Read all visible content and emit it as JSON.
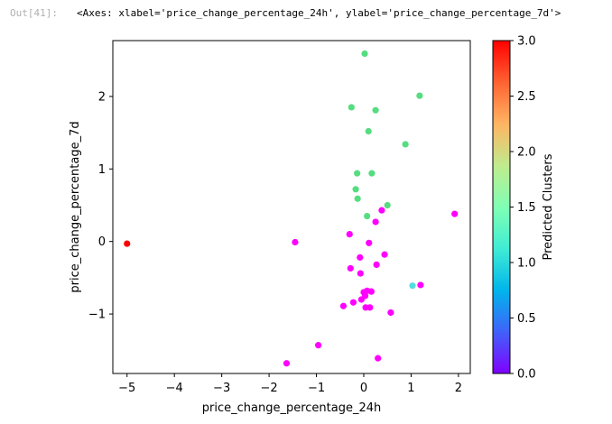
{
  "output": {
    "prompt": "Out[41]:",
    "text": "<Axes: xlabel='price_change_percentage_24h', ylabel='price_change_percentage_7d'>"
  },
  "chart_data": {
    "type": "scatter",
    "title": "",
    "xlabel": "price_change_percentage_24h",
    "ylabel": "price_change_percentage_7d",
    "xlim": [
      -5.3,
      2.25
    ],
    "ylim": [
      -1.82,
      2.77
    ],
    "xticks": [
      -5,
      -4,
      -3,
      -2,
      -1,
      0,
      1,
      2
    ],
    "xtick_labels": [
      "−5",
      "−4",
      "−3",
      "−2",
      "−1",
      "0",
      "1",
      "2"
    ],
    "yticks": [
      -1,
      0,
      1,
      2
    ],
    "ytick_labels": [
      "−1",
      "0",
      "1",
      "2"
    ],
    "grid": false,
    "colormap": "rainbow",
    "colorbar": {
      "label": "Predicted Clusters",
      "range": [
        0,
        3
      ],
      "ticks": [
        0.0,
        0.5,
        1.0,
        1.5,
        2.0,
        2.5,
        3.0
      ],
      "tick_labels": [
        "0.0",
        "0.5",
        "1.0",
        "1.5",
        "2.0",
        "2.5",
        "3.0"
      ]
    },
    "points": [
      {
        "x": -5.0,
        "y": -0.03,
        "c": 3
      },
      {
        "x": 1.03,
        "y": -0.61,
        "c": 1
      },
      {
        "x": 0.02,
        "y": 2.59,
        "c": 2
      },
      {
        "x": 1.18,
        "y": 2.01,
        "c": 2
      },
      {
        "x": -0.26,
        "y": 1.85,
        "c": 2
      },
      {
        "x": 0.25,
        "y": 1.81,
        "c": 2
      },
      {
        "x": 0.1,
        "y": 1.52,
        "c": 2
      },
      {
        "x": 0.88,
        "y": 1.34,
        "c": 2
      },
      {
        "x": -0.14,
        "y": 0.94,
        "c": 2
      },
      {
        "x": 0.17,
        "y": 0.94,
        "c": 2
      },
      {
        "x": -0.17,
        "y": 0.72,
        "c": 2
      },
      {
        "x": -0.13,
        "y": 0.59,
        "c": 2
      },
      {
        "x": 0.5,
        "y": 0.5,
        "c": 2
      },
      {
        "x": 0.07,
        "y": 0.35,
        "c": 2
      },
      {
        "x": 1.92,
        "y": 0.38,
        "c": 0
      },
      {
        "x": 0.38,
        "y": 0.43,
        "c": 0
      },
      {
        "x": 0.25,
        "y": 0.27,
        "c": 0
      },
      {
        "x": -0.3,
        "y": 0.1,
        "c": 0
      },
      {
        "x": -1.45,
        "y": -0.01,
        "c": 0
      },
      {
        "x": 0.11,
        "y": -0.02,
        "c": 0
      },
      {
        "x": 0.44,
        "y": -0.18,
        "c": 0
      },
      {
        "x": -0.08,
        "y": -0.22,
        "c": 0
      },
      {
        "x": 0.27,
        "y": -0.32,
        "c": 0
      },
      {
        "x": -0.28,
        "y": -0.37,
        "c": 0
      },
      {
        "x": -0.07,
        "y": -0.44,
        "c": 0
      },
      {
        "x": 1.2,
        "y": -0.6,
        "c": 0
      },
      {
        "x": 0.0,
        "y": -0.7,
        "c": 0
      },
      {
        "x": 0.07,
        "y": -0.68,
        "c": 0
      },
      {
        "x": 0.16,
        "y": -0.69,
        "c": 0
      },
      {
        "x": 0.03,
        "y": -0.75,
        "c": 0
      },
      {
        "x": -0.05,
        "y": -0.8,
        "c": 0
      },
      {
        "x": -0.22,
        "y": -0.84,
        "c": 0
      },
      {
        "x": -0.43,
        "y": -0.89,
        "c": 0
      },
      {
        "x": 0.04,
        "y": -0.91,
        "c": 0
      },
      {
        "x": 0.13,
        "y": -0.91,
        "c": 0
      },
      {
        "x": 0.57,
        "y": -0.98,
        "c": 0
      },
      {
        "x": -0.96,
        "y": -1.43,
        "c": 0
      },
      {
        "x": 0.3,
        "y": -1.61,
        "c": 0
      },
      {
        "x": -1.63,
        "y": -1.68,
        "c": 0
      }
    ]
  }
}
